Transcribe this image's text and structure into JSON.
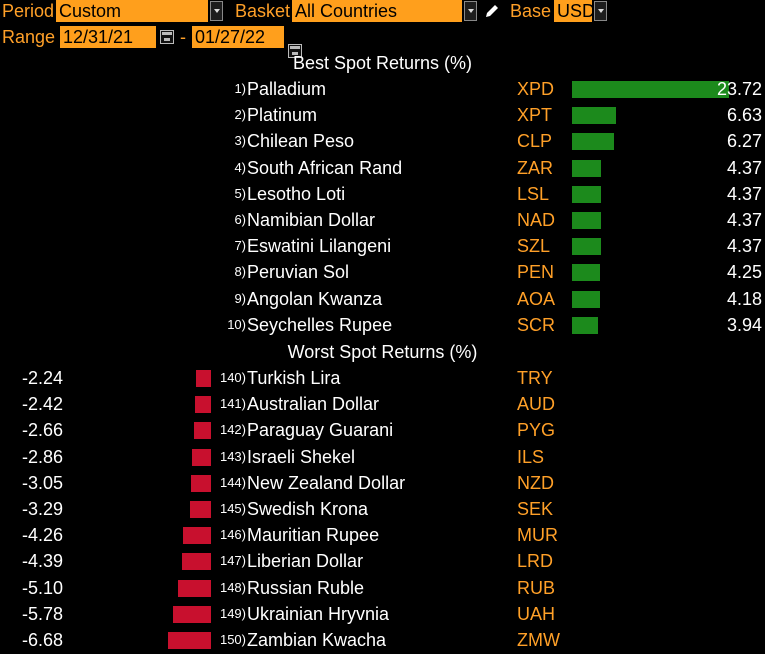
{
  "header": {
    "period_label": "Period",
    "period_value": "Custom",
    "basket_label": "Basket",
    "basket_value": "All Countries",
    "base_label": "Base",
    "base_value": "USD",
    "range_label": "Range",
    "range_start": "12/31/21",
    "range_sep": "-",
    "range_end": "01/27/22"
  },
  "best": {
    "title": "Best Spot Returns (%)",
    "rows": [
      {
        "rank": "1)",
        "name": "Palladium",
        "code": "XPD",
        "value": "23.72"
      },
      {
        "rank": "2)",
        "name": "Platinum",
        "code": "XPT",
        "value": "6.63"
      },
      {
        "rank": "3)",
        "name": "Chilean Peso",
        "code": "CLP",
        "value": "6.27"
      },
      {
        "rank": "4)",
        "name": "South African Rand",
        "code": "ZAR",
        "value": "4.37"
      },
      {
        "rank": "5)",
        "name": "Lesotho Loti",
        "code": "LSL",
        "value": "4.37"
      },
      {
        "rank": "6)",
        "name": "Namibian Dollar",
        "code": "NAD",
        "value": "4.37"
      },
      {
        "rank": "7)",
        "name": "Eswatini Lilangeni",
        "code": "SZL",
        "value": "4.37"
      },
      {
        "rank": "8)",
        "name": "Peruvian Sol",
        "code": "PEN",
        "value": "4.25"
      },
      {
        "rank": "9)",
        "name": "Angolan Kwanza",
        "code": "AOA",
        "value": "4.18"
      },
      {
        "rank": "10)",
        "name": "Seychelles Rupee",
        "code": "SCR",
        "value": "3.94"
      }
    ]
  },
  "worst": {
    "title": "Worst Spot Returns (%)",
    "rows": [
      {
        "rank": "140)",
        "name": "Turkish Lira",
        "code": "TRY",
        "value": "-2.24"
      },
      {
        "rank": "141)",
        "name": "Australian Dollar",
        "code": "AUD",
        "value": "-2.42"
      },
      {
        "rank": "142)",
        "name": "Paraguay Guarani",
        "code": "PYG",
        "value": "-2.66"
      },
      {
        "rank": "143)",
        "name": "Israeli Shekel",
        "code": "ILS",
        "value": "-2.86"
      },
      {
        "rank": "144)",
        "name": "New Zealand Dollar",
        "code": "NZD",
        "value": "-3.05"
      },
      {
        "rank": "145)",
        "name": "Swedish Krona",
        "code": "SEK",
        "value": "-3.29"
      },
      {
        "rank": "146)",
        "name": "Mauritian Rupee",
        "code": "MUR",
        "value": "-4.26"
      },
      {
        "rank": "147)",
        "name": "Liberian Dollar",
        "code": "LRD",
        "value": "-4.39"
      },
      {
        "rank": "148)",
        "name": "Russian Ruble",
        "code": "RUB",
        "value": "-5.10"
      },
      {
        "rank": "149)",
        "name": "Ukrainian Hryvnia",
        "code": "UAH",
        "value": "-5.78"
      },
      {
        "rank": "150)",
        "name": "Zambian Kwacha",
        "code": "ZMW",
        "value": "-6.68"
      }
    ]
  },
  "colors": {
    "accent": "#ffa028",
    "field_bg": "#ff9f1c",
    "positive_bar": "#1c8a1c",
    "negative_bar": "#c8102e"
  },
  "icons": {
    "edit": "pencil-icon",
    "dropdown": "chevron-down-icon",
    "calendar": "calendar-icon"
  }
}
